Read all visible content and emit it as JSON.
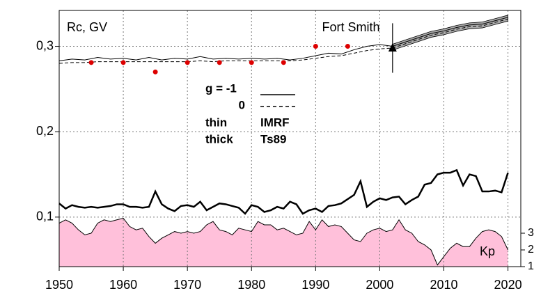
{
  "chart_data": {
    "type": "line",
    "ylabel": "Rc, GV",
    "annotation": "Fort Smith",
    "legend_text": [
      "g  = -1",
      "0",
      "thin",
      "IMRF",
      "thick",
      "Ts89"
    ],
    "xlim": [
      1950,
      2022
    ],
    "xticks": [
      1950,
      1960,
      1970,
      1980,
      1990,
      2000,
      2010,
      2020
    ],
    "ylim": [
      0.042,
      0.342
    ],
    "yticks": [
      {
        "value": 0.1,
        "label": "0,1"
      },
      {
        "value": 0.2,
        "label": "0,2"
      },
      {
        "value": 0.3,
        "label": "0,3"
      }
    ],
    "y2lim": [
      1,
      16.33
    ],
    "y2ticks": [
      1,
      2,
      3
    ],
    "grid": true,
    "band_from": 2002,
    "band_color": "#aaaaaa",
    "series": [
      {
        "kind": "line",
        "color": "#000000",
        "width": 1,
        "dash": "none",
        "x": [
          1950,
          1952,
          1954,
          1956,
          1958,
          1960,
          1962,
          1964,
          1966,
          1968,
          1970,
          1972,
          1974,
          1976,
          1978,
          1980,
          1982,
          1984,
          1986,
          1988,
          1990,
          1992,
          1994,
          1996,
          1998,
          2000,
          2002,
          2004,
          2006,
          2008,
          2010,
          2012,
          2014,
          2016,
          2018,
          2020
        ],
        "values": [
          0.283,
          0.285,
          0.284,
          0.287,
          0.285,
          0.286,
          0.284,
          0.287,
          0.284,
          0.286,
          0.285,
          0.288,
          0.285,
          0.286,
          0.285,
          0.286,
          0.285,
          0.286,
          0.284,
          0.286,
          0.289,
          0.292,
          0.291,
          0.296,
          0.3,
          0.302,
          0.3,
          0.305,
          0.31,
          0.315,
          0.318,
          0.322,
          0.325,
          0.326,
          0.33,
          0.334
        ]
      },
      {
        "kind": "line",
        "color": "#000000",
        "width": 1,
        "dash": "5 3",
        "x": [
          1950,
          1952,
          1954,
          1956,
          1958,
          1960,
          1962,
          1964,
          1966,
          1968,
          1970,
          1972,
          1974,
          1976,
          1978,
          1980,
          1982,
          1984,
          1986,
          1988,
          1990,
          1992,
          1994,
          1996,
          1998,
          2000,
          2002,
          2004,
          2006,
          2008,
          2010,
          2012,
          2014,
          2016,
          2018,
          2020
        ],
        "values": [
          0.28,
          0.281,
          0.281,
          0.282,
          0.282,
          0.282,
          0.282,
          0.282,
          0.282,
          0.282,
          0.282,
          0.283,
          0.282,
          0.283,
          0.283,
          0.283,
          0.283,
          0.283,
          0.283,
          0.284,
          0.286,
          0.288,
          0.289,
          0.292,
          0.295,
          0.297,
          0.298,
          0.303,
          0.308,
          0.313,
          0.316,
          0.32,
          0.323,
          0.324,
          0.328,
          0.332
        ]
      },
      {
        "kind": "line",
        "color": "#000000",
        "width": 2.5,
        "dash": "none",
        "x": [
          1950,
          1951,
          1952,
          1953,
          1954,
          1955,
          1956,
          1957,
          1958,
          1959,
          1960,
          1961,
          1962,
          1963,
          1964,
          1965,
          1966,
          1967,
          1968,
          1969,
          1970,
          1971,
          1972,
          1973,
          1974,
          1975,
          1976,
          1977,
          1978,
          1979,
          1980,
          1981,
          1982,
          1983,
          1984,
          1985,
          1986,
          1987,
          1988,
          1989,
          1990,
          1991,
          1992,
          1993,
          1994,
          1995,
          1996,
          1997,
          1998,
          1999,
          2000,
          2001,
          2002,
          2003,
          2004,
          2005,
          2006,
          2007,
          2008,
          2009,
          2010,
          2011,
          2012,
          2013,
          2014,
          2015,
          2016,
          2017,
          2018,
          2019,
          2020
        ],
        "values": [
          0.116,
          0.11,
          0.114,
          0.112,
          0.111,
          0.112,
          0.111,
          0.112,
          0.113,
          0.115,
          0.115,
          0.112,
          0.112,
          0.111,
          0.112,
          0.13,
          0.115,
          0.11,
          0.107,
          0.113,
          0.114,
          0.112,
          0.118,
          0.108,
          0.112,
          0.116,
          0.115,
          0.113,
          0.111,
          0.104,
          0.114,
          0.112,
          0.106,
          0.108,
          0.112,
          0.11,
          0.118,
          0.115,
          0.104,
          0.108,
          0.11,
          0.106,
          0.113,
          0.114,
          0.116,
          0.121,
          0.126,
          0.142,
          0.112,
          0.118,
          0.122,
          0.12,
          0.123,
          0.124,
          0.115,
          0.12,
          0.124,
          0.138,
          0.14,
          0.15,
          0.152,
          0.152,
          0.155,
          0.137,
          0.15,
          0.148,
          0.13,
          0.13,
          0.131,
          0.129,
          0.152
        ]
      },
      {
        "kind": "scatter",
        "color": "#dd0000",
        "x": [
          1955,
          1960,
          1965,
          1970,
          1975,
          1980,
          1985,
          1990,
          1995
        ],
        "values": [
          0.281,
          0.281,
          0.27,
          0.281,
          0.281,
          0.281,
          0.281,
          0.3,
          0.3
        ]
      },
      {
        "kind": "area",
        "name": "Kp",
        "axis": "y2",
        "color": "#ffc0da",
        "x": [
          1950,
          1951,
          1952,
          1953,
          1954,
          1955,
          1956,
          1957,
          1958,
          1959,
          1960,
          1961,
          1962,
          1963,
          1964,
          1965,
          1966,
          1967,
          1968,
          1969,
          1970,
          1971,
          1972,
          1973,
          1974,
          1975,
          1976,
          1977,
          1978,
          1979,
          1980,
          1981,
          1982,
          1983,
          1984,
          1985,
          1986,
          1987,
          1988,
          1989,
          1990,
          1991,
          1992,
          1993,
          1994,
          1995,
          1996,
          1997,
          1998,
          1999,
          2000,
          2001,
          2002,
          2003,
          2004,
          2005,
          2006,
          2007,
          2008,
          2009,
          2010,
          2011,
          2012,
          2013,
          2014,
          2015,
          2016,
          2017,
          2018,
          2019,
          2020
        ],
        "values": [
          3.6,
          3.8,
          3.6,
          3.2,
          2.9,
          3.0,
          3.6,
          3.8,
          3.7,
          3.8,
          3.9,
          3.4,
          3.2,
          3.3,
          2.8,
          2.4,
          2.7,
          2.9,
          3.1,
          3.0,
          3.1,
          3.0,
          3.1,
          3.5,
          3.7,
          3.2,
          3.1,
          2.9,
          3.3,
          3.2,
          3.1,
          3.7,
          3.5,
          3.5,
          3.2,
          3.3,
          3.1,
          2.9,
          3.0,
          3.7,
          3.2,
          3.8,
          3.4,
          3.5,
          3.4,
          3.0,
          2.6,
          2.5,
          3.0,
          3.2,
          3.3,
          3.1,
          3.2,
          3.8,
          3.2,
          3.0,
          2.5,
          2.3,
          2.0,
          1.1,
          1.6,
          2.1,
          2.4,
          2.2,
          2.2,
          2.7,
          3.1,
          3.2,
          3.1,
          2.8,
          2.0
        ]
      }
    ],
    "marker": {
      "x": 2002,
      "value": 0.298,
      "error": 0.029
    }
  }
}
